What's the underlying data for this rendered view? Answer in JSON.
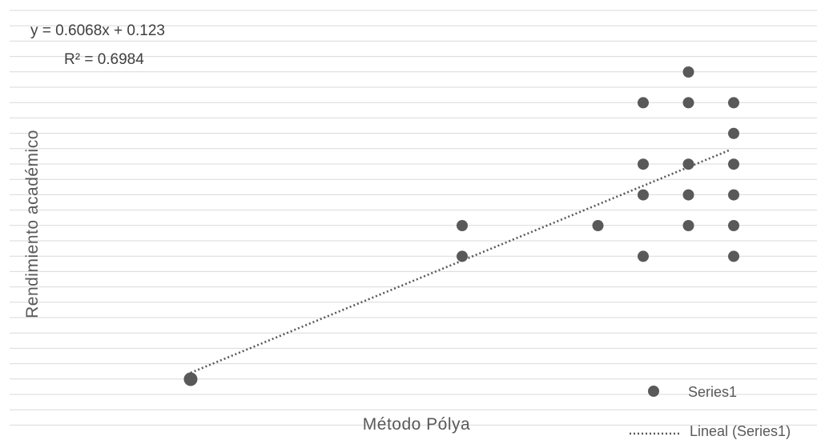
{
  "chart_data": {
    "type": "scatter",
    "xlabel": "Método Pólya",
    "ylabel": "Rendimiento académico",
    "grid": true,
    "legend_position": "bottom-right",
    "series": [
      {
        "name": "Series1",
        "color": "#595959",
        "points": [
          {
            "x": 1,
            "y": 0.7
          },
          {
            "x": 7,
            "y": 5.7
          },
          {
            "x": 7,
            "y": 4.7
          },
          {
            "x": 10,
            "y": 5.7
          },
          {
            "x": 11,
            "y": 9.7
          },
          {
            "x": 11,
            "y": 7.7
          },
          {
            "x": 11,
            "y": 6.7
          },
          {
            "x": 11,
            "y": 4.7
          },
          {
            "x": 12,
            "y": 10.7
          },
          {
            "x": 12,
            "y": 9.7
          },
          {
            "x": 12,
            "y": 7.7
          },
          {
            "x": 12,
            "y": 6.7
          },
          {
            "x": 12,
            "y": 5.7
          },
          {
            "x": 13,
            "y": 9.7
          },
          {
            "x": 13,
            "y": 8.7
          },
          {
            "x": 13,
            "y": 7.7
          },
          {
            "x": 13,
            "y": 6.7
          },
          {
            "x": 13,
            "y": 5.7
          },
          {
            "x": 13,
            "y": 4.7
          }
        ]
      }
    ],
    "trendline": {
      "name": "Lineal (Series1)",
      "style": "dotted",
      "color": "#595959",
      "slope": 0.6068,
      "intercept": 0.123,
      "x_range": [
        1,
        13
      ],
      "equation": "y = 0.6068x + 0.123",
      "r_squared": "R² = 0.6984"
    },
    "legend": {
      "series_label": "Series1",
      "trend_label": "Lineal (Series1)"
    }
  }
}
